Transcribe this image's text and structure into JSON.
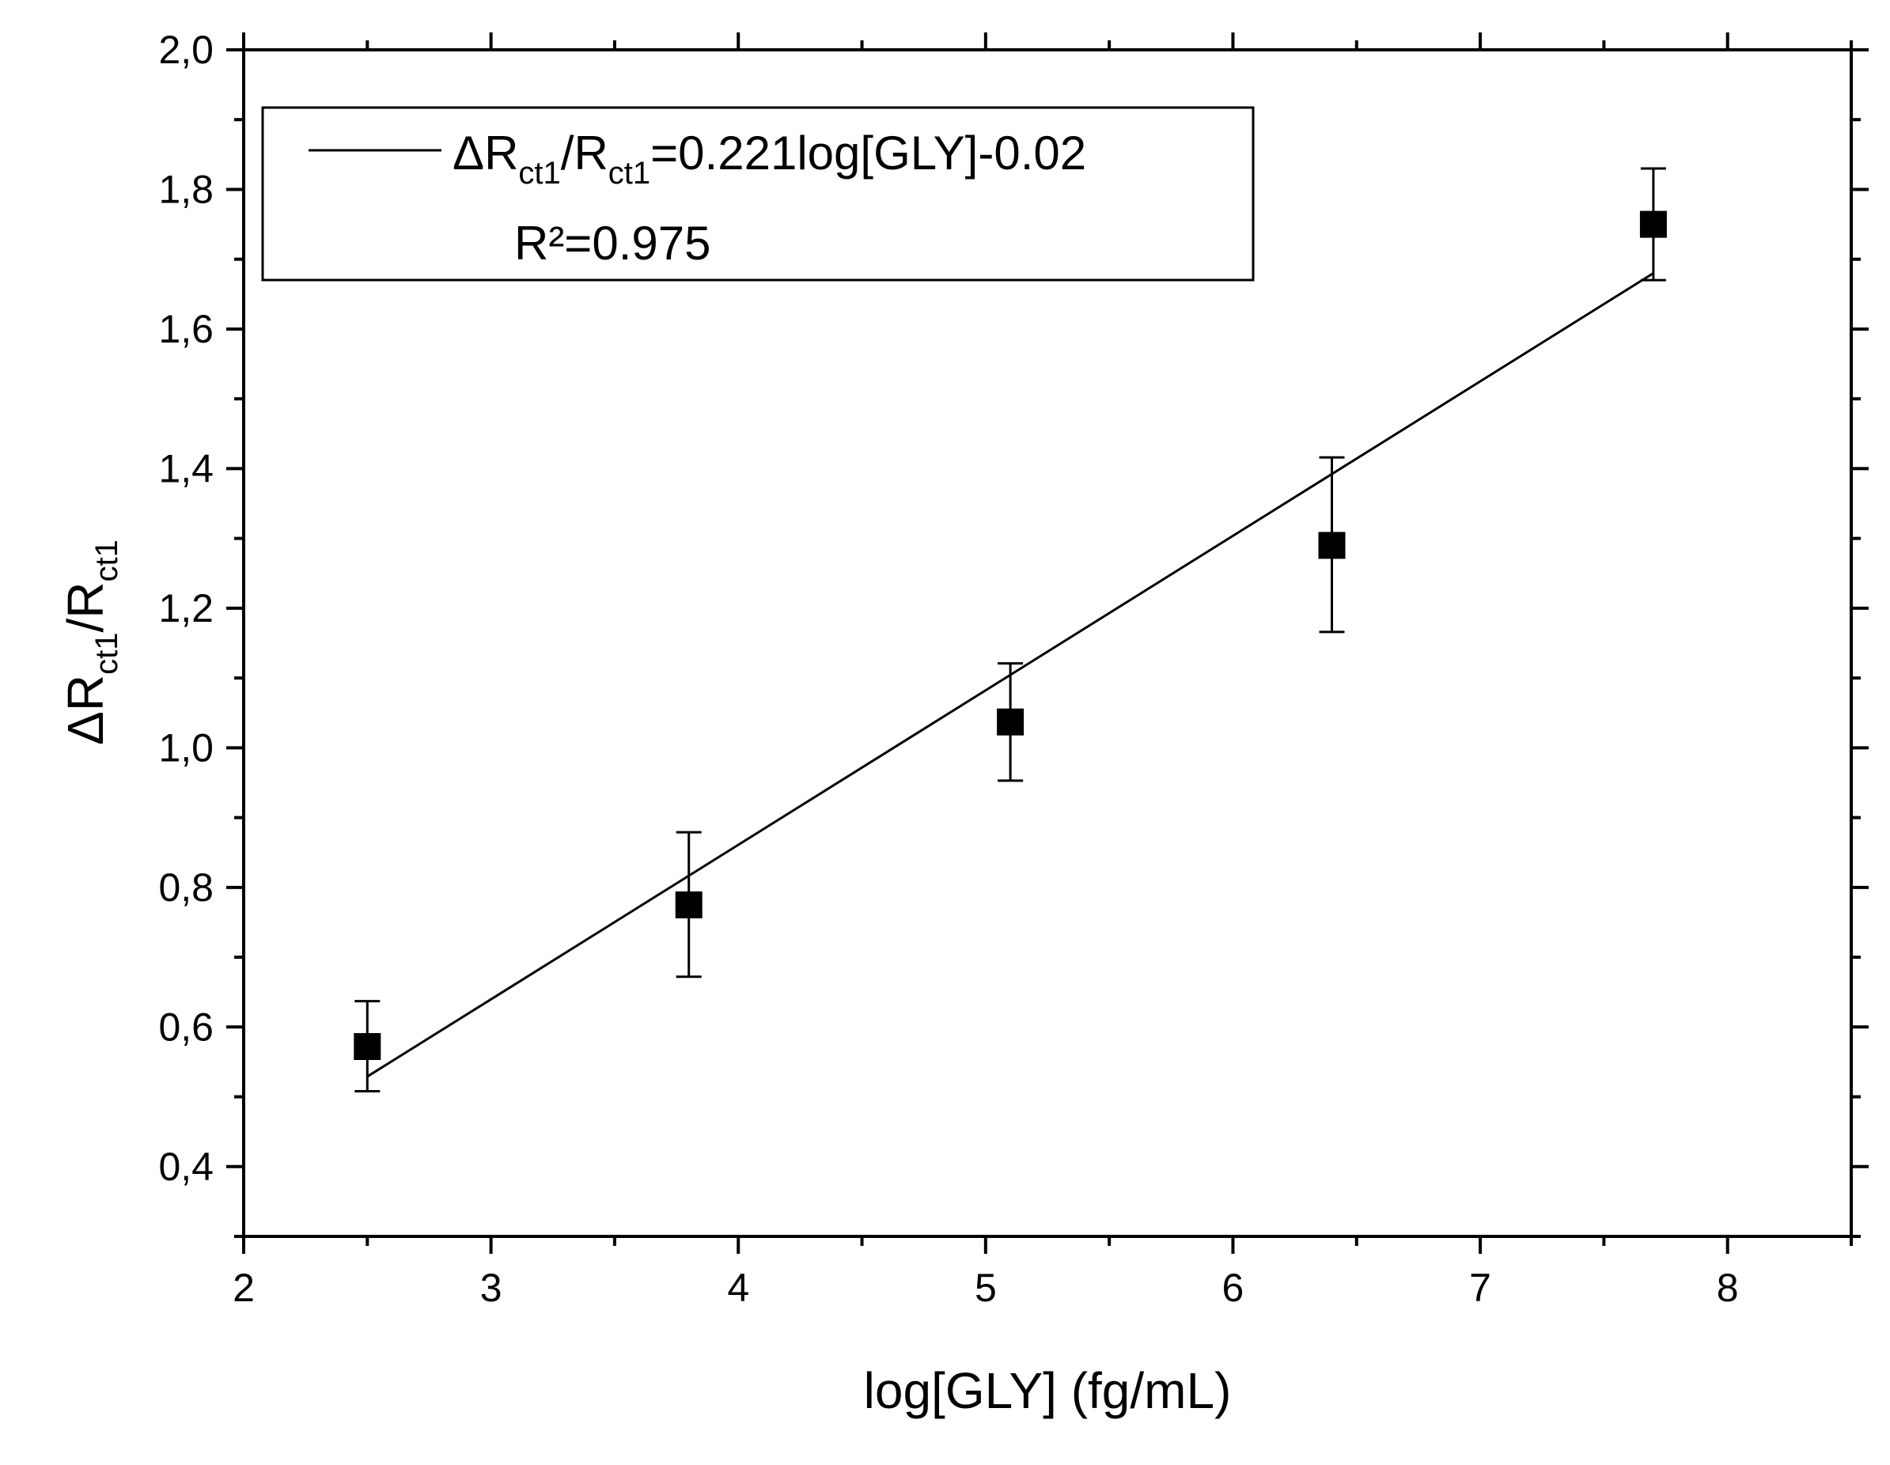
{
  "chart_data": {
    "type": "scatter",
    "xlabel": "log[GLY] (fg/mL)",
    "ylabel": {
      "prefix": "ΔR",
      "sub1": "ct1",
      "mid": "/R",
      "sub2": "ct1"
    },
    "xlim": [
      2,
      8.5
    ],
    "ylim": [
      0.3,
      2.0
    ],
    "xticks": [
      2,
      3,
      4,
      5,
      6,
      7,
      8
    ],
    "xtick_labels": [
      "2",
      "3",
      "4",
      "5",
      "6",
      "7",
      "8"
    ],
    "yticks": [
      0.4,
      0.6,
      0.8,
      1.0,
      1.2,
      1.4,
      1.6,
      1.8,
      2.0
    ],
    "ytick_labels": [
      "0,4",
      "0,6",
      "0,8",
      "1,0",
      "1,2",
      "1,4",
      "1,6",
      "1,8",
      "2,0"
    ],
    "grid": false,
    "legend_position": "top-left",
    "series": [
      {
        "marker": "square",
        "color": "#000000",
        "x": [
          2.5,
          3.8,
          5.1,
          6.4,
          7.7
        ],
        "y": [
          0.572,
          0.775,
          1.037,
          1.29,
          1.75
        ],
        "err_low": [
          0.508,
          0.672,
          0.953,
          1.166,
          1.67
        ],
        "err_high": [
          0.637,
          0.879,
          1.121,
          1.416,
          1.83
        ]
      }
    ],
    "fit": {
      "x": [
        2.5,
        7.7
      ],
      "y": [
        0.529,
        1.68
      ],
      "legend": {
        "eq_prefix": "ΔR",
        "eq_sub1": "ct1",
        "eq_mid": "/R",
        "eq_sub2": "ct1",
        "eq_suffix": "=0.221log[GLY]-0.02",
        "r2": "R²=0.975"
      }
    }
  }
}
